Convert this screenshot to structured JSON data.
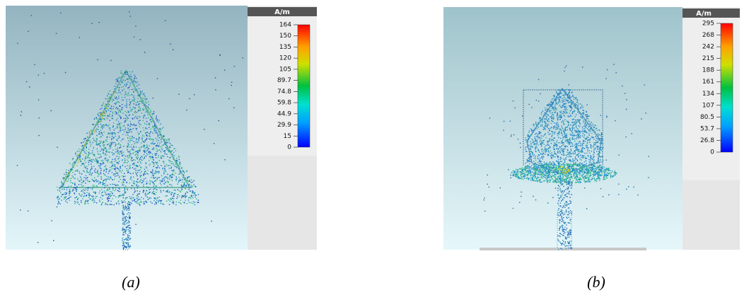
{
  "panels": [
    {
      "unit": "A/m",
      "scale_labels": [
        "164",
        "150",
        "135",
        "120",
        "105",
        "89.7",
        "74.8",
        "59.8",
        "44.9",
        "29.9",
        "15",
        "0"
      ],
      "caption": "(a)"
    },
    {
      "unit": "A/m",
      "scale_labels": [
        "295",
        "268",
        "242",
        "215",
        "188",
        "161",
        "134",
        "107",
        "80.5",
        "53.7",
        "26.8",
        "0"
      ],
      "caption": "(b)"
    }
  ]
}
